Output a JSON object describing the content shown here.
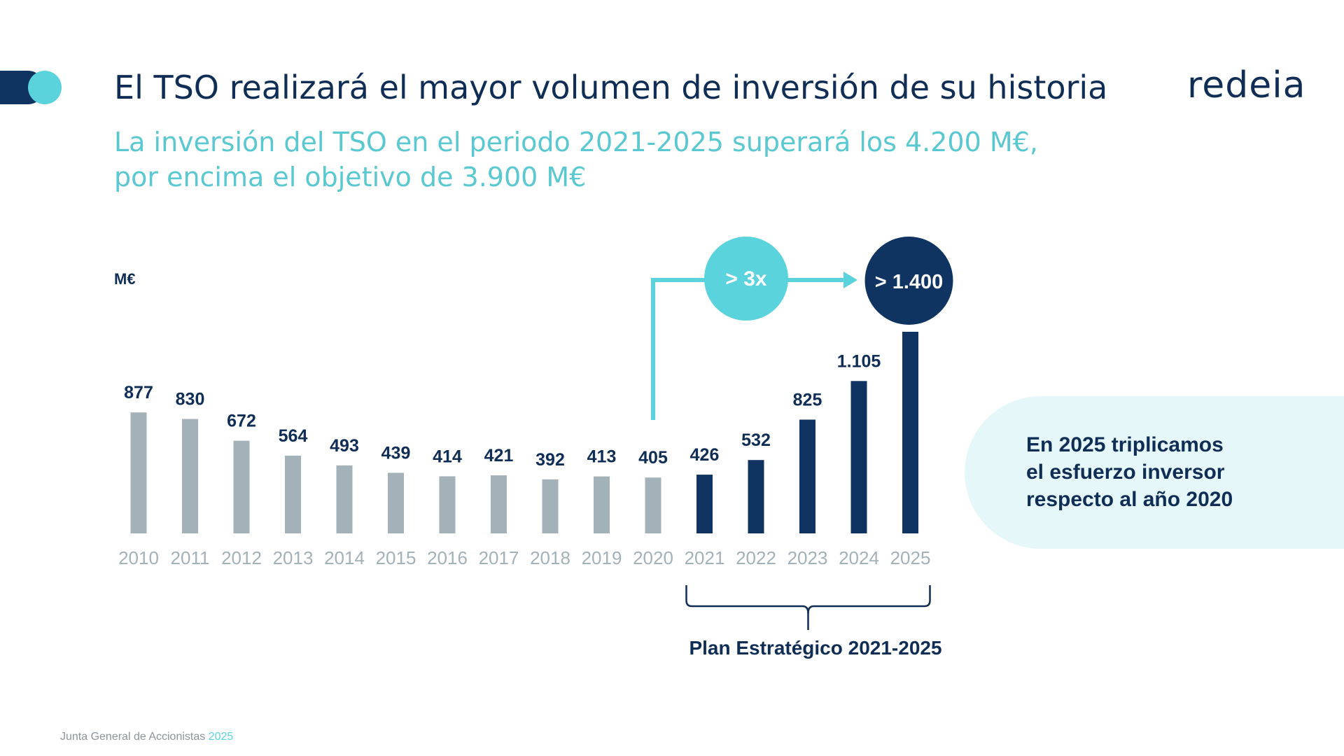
{
  "header": {
    "title": "El TSO realizará el mayor volumen de inversión de su historia",
    "logo_text": "redeia",
    "subtitle_line1": "La inversión del TSO en el periodo 2021-2025 superará los 4.200 M€,",
    "subtitle_line2": "por encima el objetivo de 3.900 M€"
  },
  "chart_data": {
    "type": "bar",
    "ylabel": "M€",
    "categories": [
      "2010",
      "2011",
      "2012",
      "2013",
      "2014",
      "2015",
      "2016",
      "2017",
      "2018",
      "2019",
      "2020",
      "2021",
      "2022",
      "2023",
      "2024",
      "2025"
    ],
    "values": [
      877,
      830,
      672,
      564,
      493,
      439,
      414,
      421,
      392,
      413,
      405,
      426,
      532,
      825,
      1105,
      1400
    ],
    "value_labels": [
      "877",
      "830",
      "672",
      "564",
      "493",
      "439",
      "414",
      "421",
      "392",
      "413",
      "405",
      "426",
      "532",
      "825",
      "1.105",
      "> 1.400"
    ],
    "historical_color": "#a3b1b8",
    "plan_color": "#0f3461",
    "plan_start_index": 11,
    "bracket_label": "Plan Estratégico 2021-2025",
    "growth_badge": "> 3x",
    "growth_badge_color": "#5ad3dc",
    "ylim": [
      0,
      1500
    ],
    "grid": false
  },
  "callout": {
    "line1": "En 2025 triplicamos",
    "line2": "el esfuerzo inversor",
    "line3": "respecto al año 2020"
  },
  "footer": {
    "text": "Junta General de Accionistas",
    "year": "2025"
  }
}
